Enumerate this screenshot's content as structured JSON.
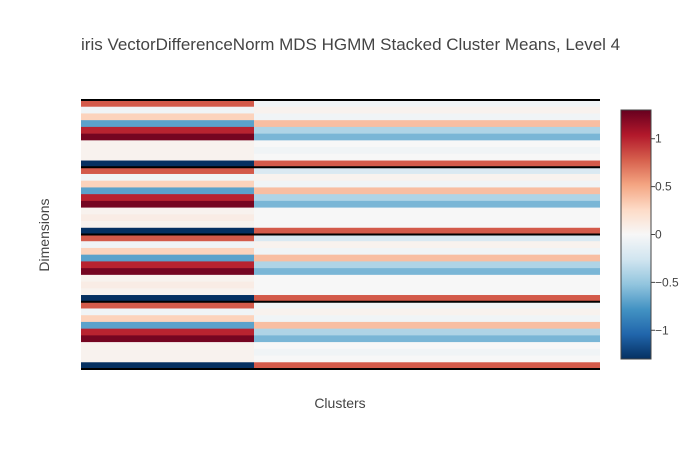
{
  "chart_data": {
    "type": "heatmap",
    "title": "iris VectorDifferenceNorm MDS HGMM Stacked Cluster Means, Level 4",
    "xlabel": "Clusters",
    "ylabel": "Dimensions",
    "colorscale": "RdBu (reversed)",
    "zlim": [
      -1.3,
      1.3
    ],
    "colorbar_ticks": [
      {
        "value": 1,
        "label": "1"
      },
      {
        "value": 0.5,
        "label": "0.5"
      },
      {
        "value": 0,
        "label": "0"
      },
      {
        "value": -0.5,
        "label": "−0.5"
      },
      {
        "value": -1,
        "label": "−1"
      }
    ],
    "n_clusters": 2,
    "blocks": [
      {
        "values": [
          [
            0.8,
            -0.05
          ],
          [
            -0.05,
            0.05
          ],
          [
            0.3,
            -0.05
          ],
          [
            -0.7,
            0.4
          ],
          [
            1.0,
            -0.4
          ],
          [
            1.25,
            -0.6
          ],
          [
            0.05,
            0.0
          ],
          [
            0.05,
            -0.05
          ],
          [
            0.05,
            0.0
          ],
          [
            -1.3,
            0.8
          ]
        ]
      },
      {
        "values": [
          [
            0.8,
            -0.2
          ],
          [
            -0.05,
            0.05
          ],
          [
            0.3,
            -0.05
          ],
          [
            -0.7,
            0.4
          ],
          [
            1.0,
            -0.4
          ],
          [
            1.25,
            -0.6
          ],
          [
            0.05,
            0.0
          ],
          [
            0.1,
            0.0
          ],
          [
            0.05,
            0.0
          ],
          [
            -1.3,
            0.8
          ]
        ]
      },
      {
        "values": [
          [
            0.8,
            -0.2
          ],
          [
            -0.05,
            0.05
          ],
          [
            0.3,
            -0.05
          ],
          [
            -0.7,
            0.4
          ],
          [
            1.0,
            -0.4
          ],
          [
            1.25,
            -0.6
          ],
          [
            0.05,
            0.0
          ],
          [
            0.1,
            0.0
          ],
          [
            0.05,
            0.0
          ],
          [
            -1.3,
            0.8
          ]
        ]
      },
      {
        "values": [
          [
            0.8,
            -0.05
          ],
          [
            -0.05,
            0.05
          ],
          [
            0.3,
            -0.05
          ],
          [
            -0.7,
            0.4
          ],
          [
            1.0,
            -0.4
          ],
          [
            1.25,
            -0.6
          ],
          [
            0.05,
            0.0
          ],
          [
            0.05,
            -0.05
          ],
          [
            0.05,
            0.0
          ],
          [
            -1.3,
            0.8
          ]
        ]
      }
    ]
  }
}
